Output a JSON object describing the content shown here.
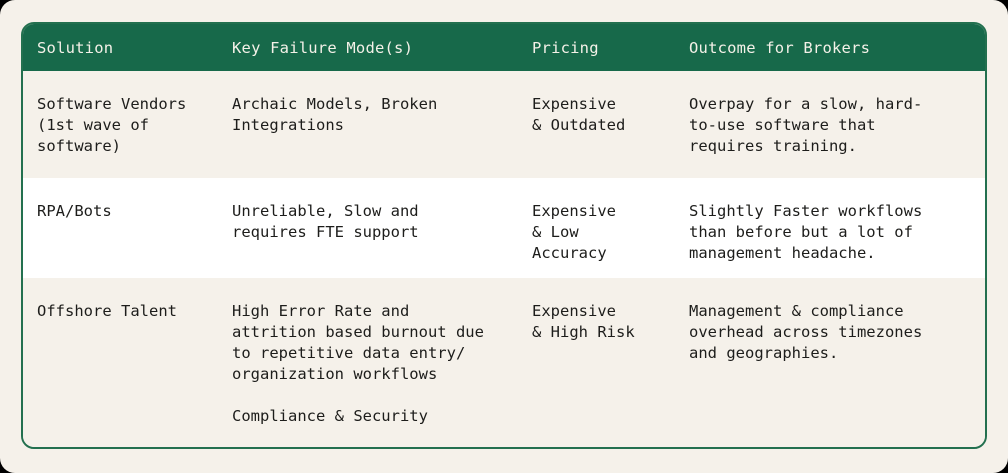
{
  "theme": {
    "header_bg": "#17694a",
    "border_green": "#23704f",
    "page_cream": "#f5f1ea",
    "row_white": "#ffffff",
    "body_text": "#1d1d1b",
    "header_text": "#f4f1e8"
  },
  "table": {
    "columns": [
      "Solution",
      "Key Failure Mode(s)",
      "Pricing",
      "Outcome for Brokers"
    ],
    "rows": [
      {
        "solution": "Software Vendors\n(1st wave of\nsoftware)",
        "failure_modes": "Archaic Models, Broken\nIntegrations",
        "pricing": "Expensive\n& Outdated",
        "outcome": "Overpay for a slow, hard-\nto-use software that\nrequires training."
      },
      {
        "solution": "RPA/Bots",
        "failure_modes": "Unreliable, Slow and\nrequires FTE support",
        "pricing": "Expensive\n& Low Accuracy",
        "outcome": "Slightly Faster workflows\nthan before but a lot of\nmanagement headache."
      },
      {
        "solution": "Offshore Talent",
        "failure_modes": "High Error Rate and\nattrition based burnout due\nto repetitive data entry/\norganization workflows\n\nCompliance & Security",
        "pricing": "Expensive\n& High Risk",
        "outcome": "Management & compliance\noverhead across timezones\nand geographies."
      }
    ]
  }
}
